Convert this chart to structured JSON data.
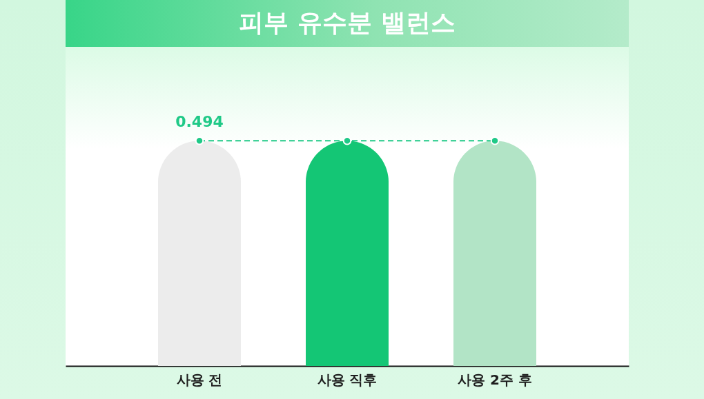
{
  "chart_data": {
    "type": "bar",
    "title": "피부 유수분 밸런스",
    "categories": [
      "사용 전",
      "사용 직후",
      "사용 2주 후"
    ],
    "series": [
      {
        "colors": [
          "#ececec",
          "#14c675",
          "#b2e4c6"
        ],
        "values": [
          0.494,
          0.494,
          0.494
        ]
      },
      {
        "type": "line",
        "color": "#1fc987",
        "values": [
          0.494,
          0.494,
          0.494
        ],
        "value_labels": [
          "0.494",
          null,
          null
        ]
      }
    ],
    "ylim": [
      0,
      0.7
    ],
    "tick_labels": "x",
    "legend": false,
    "marker": "circle",
    "line_style": "dashed"
  }
}
